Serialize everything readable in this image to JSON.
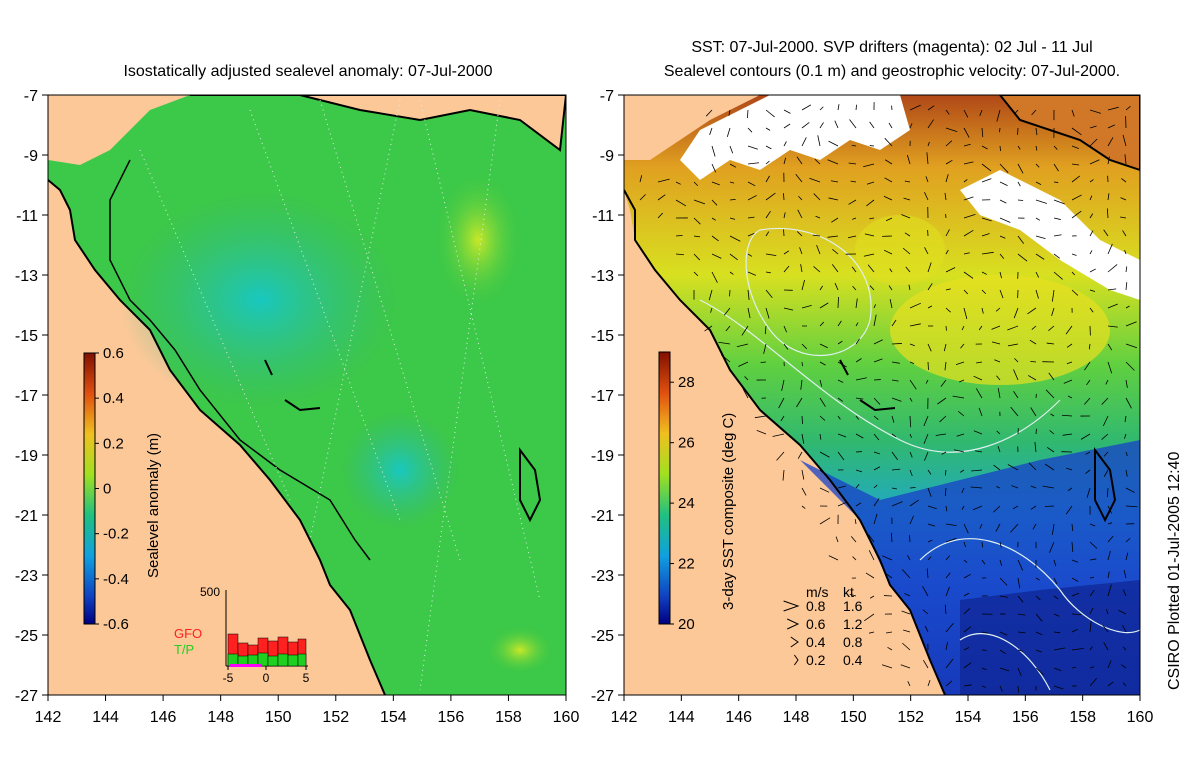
{
  "left_panel": {
    "title": "Isostatically adjusted sealevel anomaly: 07-Jul-2000",
    "colorbar": {
      "label": "Sealevel anomaly (m)",
      "ticks": [
        "0.6",
        "0.4",
        "0.2",
        "0",
        "-0.2",
        "-0.4",
        "-0.6"
      ],
      "range": [
        -0.6,
        0.6
      ]
    },
    "inset": {
      "ymax_label": "500",
      "legend": [
        "GFO",
        "T/P"
      ],
      "xticks": [
        "-5",
        "0",
        "5"
      ],
      "colors": {
        "GFO": "#ff2020",
        "T/P": "#20d020",
        "days": "#ff00ff"
      }
    }
  },
  "right_panel": {
    "title_line1": "SST: 07-Jul-2000. SVP drifters (magenta): 02 Jul - 11 Jul",
    "title_line2": "Sealevel contours (0.1 m) and geostrophic velocity: 07-Jul-2000.",
    "colorbar": {
      "label": "3-day SST composite (deg C)",
      "ticks": [
        "28",
        "26",
        "24",
        "22",
        "20"
      ],
      "range": [
        20,
        29
      ]
    },
    "speed_legend": {
      "header_ms": "m/s",
      "header_kt": "kt",
      "rows": [
        {
          "ms": "0.8",
          "kt": "1.6"
        },
        {
          "ms": "0.6",
          "kt": "1.2"
        },
        {
          "ms": "0.4",
          "kt": "0.8"
        },
        {
          "ms": "0.2",
          "kt": "0.4"
        }
      ]
    }
  },
  "axes": {
    "lat_ticks": [
      "-7",
      "-9",
      "-11",
      "-13",
      "-15",
      "-17",
      "-19",
      "-21",
      "-23",
      "-25",
      "-27"
    ],
    "lon_ticks": [
      "142",
      "144",
      "146",
      "148",
      "150",
      "152",
      "154",
      "156",
      "158",
      "160"
    ],
    "lat_range": [
      -27,
      -7
    ],
    "lon_range": [
      142,
      160
    ]
  },
  "credit": "CSIRO Plotted 01-Jul-2005 12:40",
  "colors": {
    "land": "#fcc898",
    "sla_ocean": "#3cc848",
    "sst_warm": "#f0e020",
    "sst_cold": "#1038c0"
  }
}
